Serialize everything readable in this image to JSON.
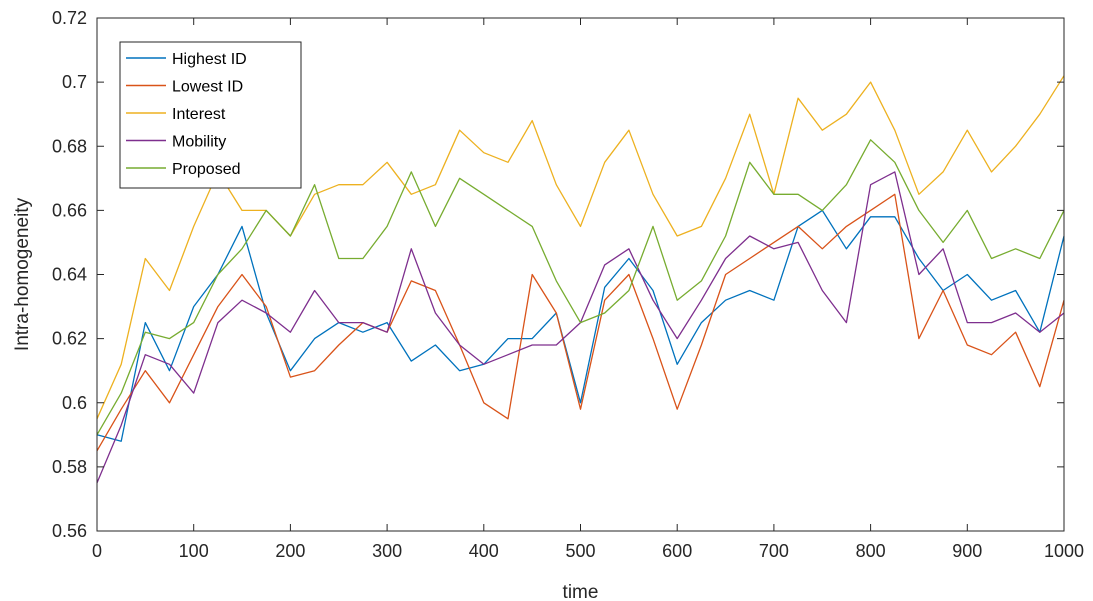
{
  "chart_data": {
    "type": "line",
    "title": "",
    "xlabel": "time",
    "ylabel": "Intra-homogeneity",
    "xlim": [
      0,
      1000
    ],
    "ylim": [
      0.56,
      0.72
    ],
    "xticks": [
      0,
      100,
      200,
      300,
      400,
      500,
      600,
      700,
      800,
      900,
      1000
    ],
    "xtick_labels": [
      "0",
      "100",
      "200",
      "300",
      "400",
      "500",
      "600",
      "700",
      "800",
      "900",
      "1000"
    ],
    "yticks": [
      0.56,
      0.58,
      0.6,
      0.62,
      0.64,
      0.66,
      0.68,
      0.7,
      0.72
    ],
    "ytick_labels": [
      "0.56",
      "0.58",
      "0.6",
      "0.62",
      "0.64",
      "0.66",
      "0.68",
      "0.7",
      "0.72"
    ],
    "grid": false,
    "legend_position": "top-left",
    "x": [
      0,
      25,
      50,
      75,
      100,
      125,
      150,
      175,
      200,
      225,
      250,
      275,
      300,
      325,
      350,
      375,
      400,
      425,
      450,
      475,
      500,
      525,
      550,
      575,
      600,
      625,
      650,
      675,
      700,
      725,
      750,
      775,
      800,
      825,
      850,
      875,
      900,
      925,
      950,
      975,
      1000
    ],
    "series": [
      {
        "name": "Highest ID",
        "color": "#0072BD",
        "values": [
          0.59,
          0.588,
          0.625,
          0.61,
          0.63,
          0.64,
          0.655,
          0.628,
          0.61,
          0.62,
          0.625,
          0.622,
          0.625,
          0.613,
          0.618,
          0.61,
          0.612,
          0.62,
          0.62,
          0.628,
          0.6,
          0.636,
          0.645,
          0.635,
          0.612,
          0.625,
          0.632,
          0.635,
          0.632,
          0.655,
          0.66,
          0.648,
          0.658,
          0.658,
          0.645,
          0.635,
          0.64,
          0.632,
          0.635,
          0.622,
          0.652
        ]
      },
      {
        "name": "Lowest ID",
        "color": "#D95319",
        "values": [
          0.585,
          0.598,
          0.61,
          0.6,
          0.615,
          0.63,
          0.64,
          0.63,
          0.608,
          0.61,
          0.618,
          0.625,
          0.622,
          0.638,
          0.635,
          0.618,
          0.6,
          0.595,
          0.64,
          0.628,
          0.598,
          0.632,
          0.64,
          0.62,
          0.598,
          0.618,
          0.64,
          0.645,
          0.65,
          0.655,
          0.648,
          0.655,
          0.66,
          0.665,
          0.62,
          0.635,
          0.618,
          0.615,
          0.622,
          0.605,
          0.632
        ]
      },
      {
        "name": "Interest",
        "color": "#EDB120",
        "values": [
          0.595,
          0.612,
          0.645,
          0.635,
          0.655,
          0.672,
          0.66,
          0.66,
          0.652,
          0.665,
          0.668,
          0.668,
          0.675,
          0.665,
          0.668,
          0.685,
          0.678,
          0.675,
          0.688,
          0.668,
          0.655,
          0.675,
          0.685,
          0.665,
          0.652,
          0.655,
          0.67,
          0.69,
          0.665,
          0.695,
          0.685,
          0.69,
          0.7,
          0.685,
          0.665,
          0.672,
          0.685,
          0.672,
          0.68,
          0.69,
          0.702
        ]
      },
      {
        "name": "Mobility",
        "color": "#7E2F8E",
        "values": [
          0.575,
          0.593,
          0.615,
          0.612,
          0.603,
          0.625,
          0.632,
          0.628,
          0.622,
          0.635,
          0.625,
          0.625,
          0.622,
          0.648,
          0.628,
          0.618,
          0.612,
          0.615,
          0.618,
          0.618,
          0.625,
          0.643,
          0.648,
          0.632,
          0.62,
          0.632,
          0.645,
          0.652,
          0.648,
          0.65,
          0.635,
          0.625,
          0.668,
          0.672,
          0.64,
          0.648,
          0.625,
          0.625,
          0.628,
          0.622,
          0.628
        ]
      },
      {
        "name": "Proposed",
        "color": "#77AC30",
        "values": [
          0.59,
          0.603,
          0.622,
          0.62,
          0.625,
          0.64,
          0.648,
          0.66,
          0.652,
          0.668,
          0.645,
          0.645,
          0.655,
          0.672,
          0.655,
          0.67,
          0.665,
          0.66,
          0.655,
          0.638,
          0.625,
          0.628,
          0.635,
          0.655,
          0.632,
          0.638,
          0.652,
          0.675,
          0.665,
          0.665,
          0.66,
          0.668,
          0.682,
          0.675,
          0.66,
          0.65,
          0.66,
          0.645,
          0.648,
          0.645,
          0.66
        ]
      }
    ]
  }
}
